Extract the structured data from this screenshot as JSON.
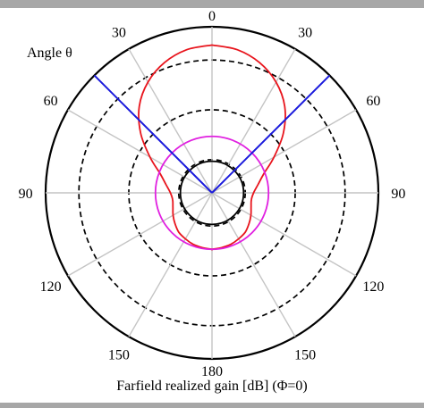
{
  "chart_data": {
    "type": "polar",
    "corner_label": "Angle θ",
    "xlabel": "Farfield realized gain [dB] (Φ=0)",
    "angle_tick_labels": [
      "0",
      "30",
      "60",
      "90",
      "120",
      "150",
      "180",
      "150",
      "120",
      "90",
      "60",
      "30"
    ],
    "angle_tick_degrees": [
      0,
      30,
      60,
      90,
      120,
      150,
      180,
      210,
      240,
      270,
      300,
      330
    ],
    "ring_levels": [
      {
        "r": 0.2,
        "style": "dashed"
      },
      {
        "r": 0.5,
        "style": "dashed"
      },
      {
        "r": 0.8,
        "style": "dashed"
      },
      {
        "r": 1.0,
        "style": "solid"
      }
    ],
    "series": [
      {
        "color": "#e8141c",
        "style": "main-lobe",
        "theta_deg": [
          0,
          10,
          20,
          30,
          40,
          50,
          60,
          70,
          80,
          90,
          100,
          110,
          120,
          130,
          140,
          150,
          160,
          170,
          180
        ],
        "r": [
          0.89,
          0.875,
          0.835,
          0.77,
          0.68,
          0.56,
          0.43,
          0.33,
          0.28,
          0.25,
          0.24,
          0.25,
          0.27,
          0.29,
          0.31,
          0.32,
          0.33,
          0.335,
          0.34
        ]
      },
      {
        "color": "#e020e0",
        "style": "circle",
        "r": 0.34
      },
      {
        "color": "#000000",
        "style": "circle",
        "r": 0.19
      },
      {
        "color": "#1a1adc",
        "style": "boundary",
        "theta_deg": [
          45,
          -45
        ],
        "r": [
          1.0,
          1.0
        ]
      }
    ],
    "grid": true
  }
}
